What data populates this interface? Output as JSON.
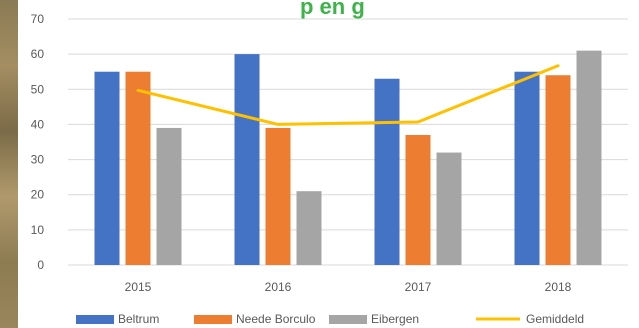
{
  "chart_data": {
    "type": "bar",
    "title": "",
    "xlabel": "",
    "ylabel": "",
    "ylim": [
      0,
      70
    ],
    "yticks": [
      0,
      10,
      20,
      30,
      40,
      50,
      60,
      70
    ],
    "categories": [
      "2015",
      "2016",
      "2017",
      "2018"
    ],
    "grid": true,
    "legend_position": "bottom",
    "series": [
      {
        "name": "Beltrum",
        "type": "bar",
        "color": "#4472c4",
        "values": [
          55,
          60,
          53,
          55
        ]
      },
      {
        "name": "Neede Borculo",
        "type": "bar",
        "color": "#ed7d31",
        "values": [
          55,
          39,
          37,
          54
        ]
      },
      {
        "name": "Eibergen",
        "type": "bar",
        "color": "#a5a5a5",
        "values": [
          39,
          21,
          32,
          61
        ]
      },
      {
        "name": "Gemiddeld",
        "type": "line",
        "color": "#ffc000",
        "values": [
          49.7,
          40,
          40.7,
          56.7
        ]
      }
    ]
  },
  "title_fragment": "p en g"
}
